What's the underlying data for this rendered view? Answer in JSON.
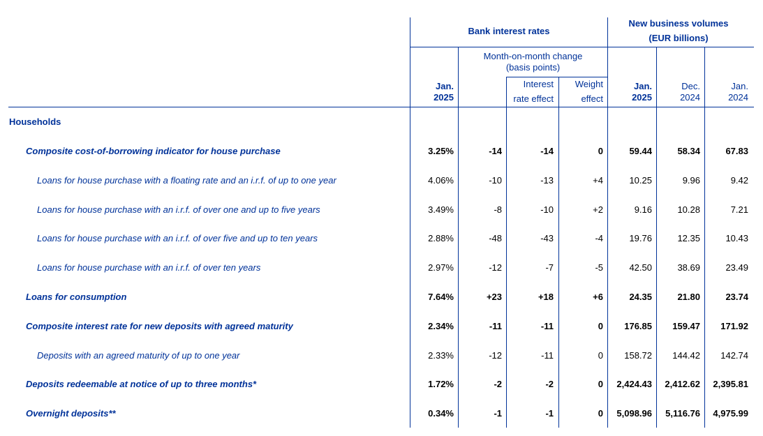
{
  "header": {
    "bank_rates": "Bank interest rates",
    "new_business_line1": "New business volumes",
    "new_business_line2": "(EUR billions)",
    "mom_line1": "Month-on-month change",
    "mom_line2": "(basis points)",
    "interest_rate_effect_line1": "Interest",
    "interest_rate_effect_line2": "rate effect",
    "weight_effect_line1": "Weight",
    "weight_effect_line2": "effect",
    "jan2025_rates_line1": "Jan.",
    "jan2025_rates_line2": "2025",
    "jan2025_vol_line1": "Jan.",
    "jan2025_vol_line2": "2025",
    "dec2024_line1": "Dec.",
    "dec2024_line2": "2024",
    "jan2024_line1": "Jan.",
    "jan2024_line2": "2024"
  },
  "section": "Households",
  "rows": [
    {
      "label": "Composite cost-of-borrowing indicator for house purchase",
      "level": 1,
      "bold": true,
      "values": [
        "3.25%",
        "-14",
        "-14",
        "0",
        "59.44",
        "58.34",
        "67.83"
      ]
    },
    {
      "label": "Loans for house purchase with a floating rate and an i.r.f. of up to one year",
      "level": 2,
      "bold": false,
      "values": [
        "4.06%",
        "-10",
        "-13",
        "+4",
        "10.25",
        "9.96",
        "9.42"
      ]
    },
    {
      "label": "Loans for house purchase with an i.r.f. of over one and up to five years",
      "level": 2,
      "bold": false,
      "values": [
        "3.49%",
        "-8",
        "-10",
        "+2",
        "9.16",
        "10.28",
        "7.21"
      ]
    },
    {
      "label": "Loans for house purchase with an i.r.f. of over five and up to ten years",
      "level": 2,
      "bold": false,
      "values": [
        "2.88%",
        "-48",
        "-43",
        "-4",
        "19.76",
        "12.35",
        "10.43"
      ]
    },
    {
      "label": "Loans for house purchase with an i.r.f. of over ten years",
      "level": 2,
      "bold": false,
      "values": [
        "2.97%",
        "-12",
        "-7",
        "-5",
        "42.50",
        "38.69",
        "23.49"
      ]
    },
    {
      "label": "Loans for consumption",
      "level": 1,
      "bold": true,
      "values": [
        "7.64%",
        "+23",
        "+18",
        "+6",
        "24.35",
        "21.80",
        "23.74"
      ]
    },
    {
      "label": "Composite interest rate for new deposits with agreed maturity",
      "level": 1,
      "bold": true,
      "values": [
        "2.34%",
        "-11",
        "-11",
        "0",
        "176.85",
        "159.47",
        "171.92"
      ]
    },
    {
      "label": "Deposits with an agreed maturity of up to one year",
      "level": 2,
      "bold": false,
      "values": [
        "2.33%",
        "-12",
        "-11",
        "0",
        "158.72",
        "144.42",
        "142.74"
      ]
    },
    {
      "label": "Deposits redeemable at notice of up to three months*",
      "level": 1,
      "bold": true,
      "values": [
        "1.72%",
        "-2",
        "-2",
        "0",
        "2,424.43",
        "2,412.62",
        "2,395.81"
      ]
    },
    {
      "label": "Overnight deposits**",
      "level": 1,
      "bold": true,
      "values": [
        "0.34%",
        "-1",
        "-1",
        "0",
        "5,098.96",
        "5,116.76",
        "4,975.99"
      ]
    }
  ]
}
